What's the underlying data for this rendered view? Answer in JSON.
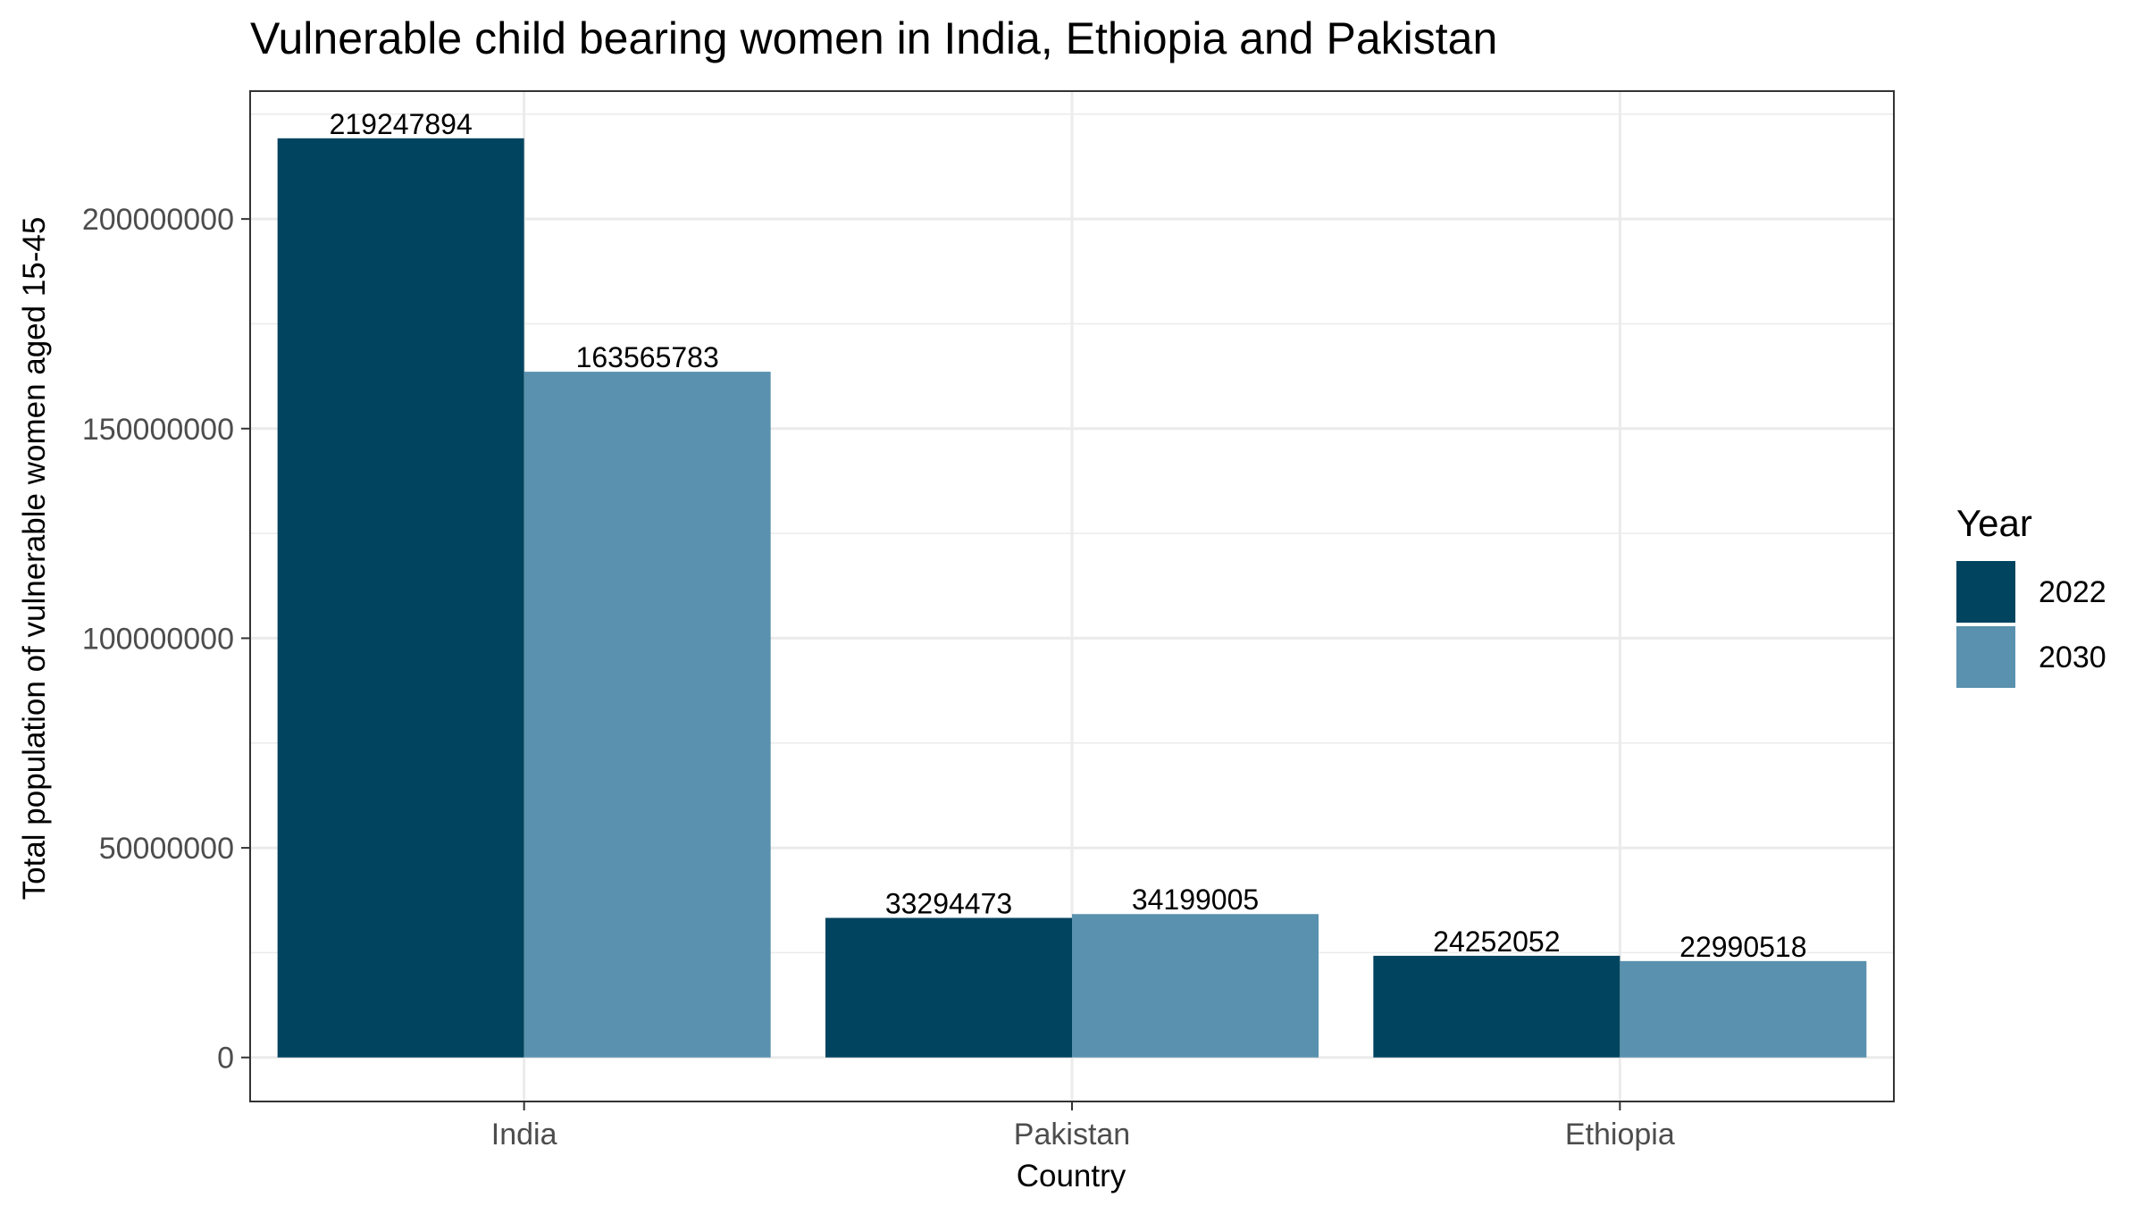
{
  "chart_data": {
    "type": "bar",
    "title": "Vulnerable child bearing women in India, Ethiopia and Pakistan",
    "xlabel": "Country",
    "ylabel": "Total population of vulnerable women aged 15-45",
    "categories": [
      "India",
      "Pakistan",
      "Ethiopia"
    ],
    "series": [
      {
        "name": "2022",
        "color": "#01445f",
        "values": [
          219247894,
          33294473,
          24252052
        ],
        "labels": [
          "219247894",
          "33294473",
          "24252052"
        ]
      },
      {
        "name": "2030",
        "color": "#5991ae",
        "values": [
          163565783,
          34199005,
          22990518
        ],
        "labels": [
          "163565783",
          "34199005",
          "22990518"
        ]
      }
    ],
    "ylim": [
      -10500000,
      230500000
    ],
    "yticks": [
      0,
      50000000,
      100000000,
      150000000,
      200000000
    ],
    "ytick_labels": [
      "0",
      "50000000",
      "100000000",
      "150000000",
      "200000000"
    ],
    "legend": {
      "title": "Year",
      "position": "right"
    },
    "grid": true,
    "theme_colors": {
      "grid": "#ebebeb",
      "border": "#333333",
      "tick_text": "#4d4d4d"
    }
  }
}
